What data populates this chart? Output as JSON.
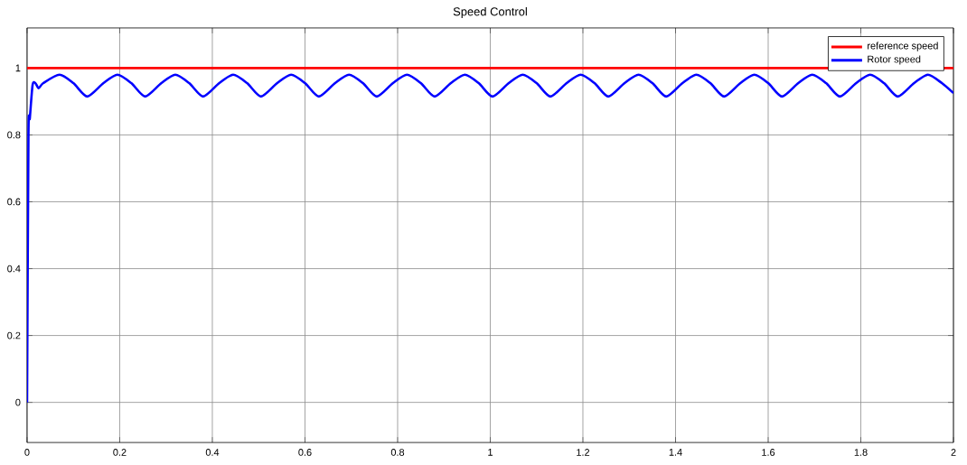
{
  "chart_data": {
    "type": "line",
    "title": "Speed Control",
    "series": [
      {
        "name": "reference speed",
        "color": "#ff0000",
        "x": [
          0,
          2
        ],
        "values": [
          1,
          1
        ]
      },
      {
        "name": "Rotor speed",
        "color": "#0000ff",
        "x": [
          0,
          0.003,
          0.006,
          0.012,
          0.018,
          0.025,
          0.035,
          0.07,
          0.1,
          0.13,
          0.165,
          0.195,
          0.225,
          0.255,
          0.29,
          0.32,
          0.35,
          0.38,
          0.415,
          0.445,
          0.475,
          0.505,
          0.54,
          0.57,
          0.6,
          0.63,
          0.665,
          0.695,
          0.725,
          0.755,
          0.79,
          0.82,
          0.85,
          0.88,
          0.915,
          0.945,
          0.975,
          1.005,
          1.04,
          1.07,
          1.1,
          1.13,
          1.165,
          1.195,
          1.225,
          1.255,
          1.29,
          1.32,
          1.35,
          1.38,
          1.415,
          1.445,
          1.475,
          1.505,
          1.54,
          1.57,
          1.6,
          1.63,
          1.665,
          1.695,
          1.725,
          1.755,
          1.79,
          1.82,
          1.85,
          1.88,
          1.915,
          1.945,
          1.975,
          2.0
        ],
        "values": [
          0,
          0.8,
          0.85,
          0.95,
          0.955,
          0.94,
          0.955,
          0.98,
          0.955,
          0.915,
          0.955,
          0.98,
          0.955,
          0.915,
          0.955,
          0.98,
          0.955,
          0.915,
          0.955,
          0.98,
          0.955,
          0.915,
          0.955,
          0.98,
          0.955,
          0.915,
          0.955,
          0.98,
          0.955,
          0.915,
          0.955,
          0.98,
          0.955,
          0.915,
          0.955,
          0.98,
          0.955,
          0.915,
          0.955,
          0.98,
          0.955,
          0.915,
          0.955,
          0.98,
          0.955,
          0.915,
          0.955,
          0.98,
          0.955,
          0.915,
          0.955,
          0.98,
          0.955,
          0.915,
          0.955,
          0.98,
          0.955,
          0.915,
          0.955,
          0.98,
          0.955,
          0.915,
          0.955,
          0.98,
          0.955,
          0.915,
          0.955,
          0.98,
          0.955,
          0.925
        ]
      }
    ],
    "xlim": [
      0,
      2
    ],
    "ylim": [
      -0.12,
      1.12
    ],
    "xticks": [
      0,
      0.2,
      0.4,
      0.6,
      0.8,
      1,
      1.2,
      1.4,
      1.6,
      1.8,
      2
    ],
    "yticks": [
      0,
      0.2,
      0.4,
      0.6,
      0.8,
      1
    ],
    "grid": true,
    "legend": "top right",
    "line_style": "solid",
    "marker": "none"
  }
}
